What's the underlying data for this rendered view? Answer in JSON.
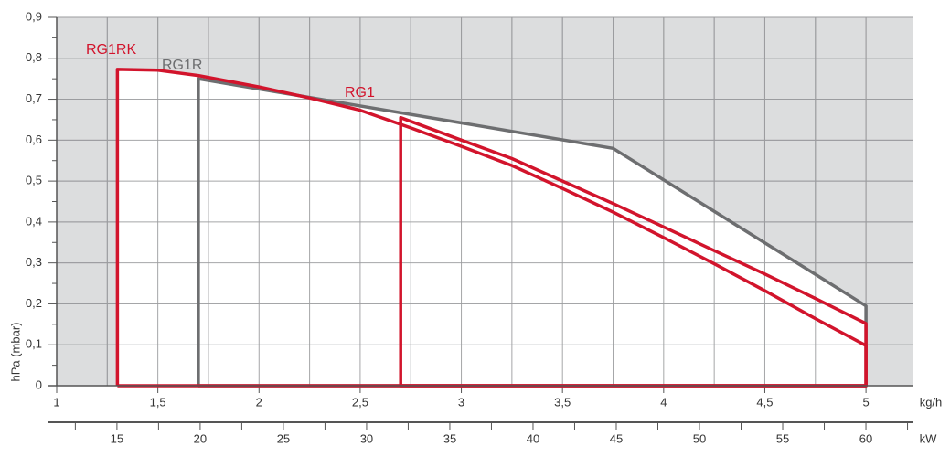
{
  "chart_data": {
    "type": "line",
    "x_label": "kg/h",
    "x2_label": "kW",
    "y_label": "hPa (mbar)",
    "xlim": [
      1,
      5.23
    ],
    "ylim": [
      0,
      0.9
    ],
    "x2lim": [
      11.38,
      62.8
    ],
    "xticks": [
      1,
      {
        "value": 1.5,
        "label": "1,5"
      },
      2,
      {
        "value": 2.5,
        "label": "2,5"
      },
      3,
      {
        "value": 3.5,
        "label": "3,5"
      },
      4,
      {
        "value": 4.5,
        "label": "4,5"
      },
      5
    ],
    "xminorticks": [
      1.25,
      1.75,
      2.25,
      2.75,
      3.25,
      3.75,
      4.25,
      4.75
    ],
    "yticks": [
      0,
      {
        "value": 0.1,
        "label": "0,1"
      },
      {
        "value": 0.2,
        "label": "0,2"
      },
      {
        "value": 0.3,
        "label": "0,3"
      },
      {
        "value": 0.4,
        "label": "0,4"
      },
      {
        "value": 0.5,
        "label": "0,5"
      },
      {
        "value": 0.6,
        "label": "0,6"
      },
      {
        "value": 0.7,
        "label": "0,7"
      },
      {
        "value": 0.8,
        "label": "0,8"
      },
      {
        "value": 0.9,
        "label": "0,9"
      }
    ],
    "yminorticks": [
      0.05,
      0.15,
      0.25,
      0.35,
      0.45,
      0.55,
      0.65,
      0.75,
      0.85
    ],
    "x2ticks": [
      15,
      20,
      25,
      30,
      35,
      40,
      45,
      50,
      55,
      60
    ],
    "x2minorticks": [
      12.5,
      17.5,
      22.5,
      27.5,
      32.5,
      37.5,
      42.5,
      47.5,
      52.5,
      57.5,
      62.5
    ],
    "grid": true,
    "series": [
      {
        "name": "RG1RK",
        "color": "#d2142c",
        "x": [
          1.3,
          1.3,
          1.5,
          1.7,
          2.0,
          2.25,
          2.5,
          2.75,
          3.0,
          3.25,
          3.5,
          3.75,
          4.0,
          4.25,
          4.5,
          4.75,
          5.0,
          5.0,
          1.3
        ],
        "values": [
          0,
          0.773,
          0.771,
          0.758,
          0.73,
          0.703,
          0.673,
          0.63,
          0.585,
          0.538,
          0.482,
          0.424,
          0.362,
          0.298,
          0.232,
          0.164,
          0.098,
          0,
          0
        ]
      },
      {
        "name": "RG1R",
        "color": "#6d6e70",
        "x": [
          1.7,
          1.7,
          3.75,
          5.0,
          5.0,
          1.7
        ],
        "values": [
          0,
          0.75,
          0.58,
          0.195,
          0,
          0
        ]
      },
      {
        "name": "RG1",
        "color": "#d2142c",
        "x": [
          2.7,
          2.7,
          3.0,
          3.25,
          3.5,
          3.75,
          4.0,
          4.25,
          4.5,
          4.75,
          5.0,
          5.0,
          2.7
        ],
        "values": [
          0,
          0.655,
          0.6,
          0.555,
          0.5,
          0.445,
          0.388,
          0.33,
          0.273,
          0.213,
          0.152,
          0,
          0
        ]
      }
    ]
  }
}
